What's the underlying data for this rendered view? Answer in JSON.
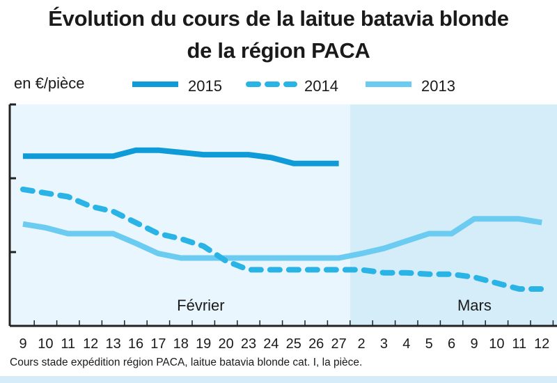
{
  "header": {
    "title_line1": "Évolution du cours de la laitue batavia blonde",
    "title_line2": "de la région PACA",
    "unit": "en €/pièce"
  },
  "footnote": "Cours stade expédition région PACA, laitue batavia blonde cat. I, la pièce.",
  "colors": {
    "series_2015": "#0f9bd7",
    "series_2014": "#2ab4e6",
    "series_2013": "#6ccbf0",
    "band_fevrier": "#eaf6fd",
    "band_mars": "#d4edf9",
    "axis": "#222222"
  },
  "chart_data": {
    "type": "line",
    "title": "Évolution du cours de la laitue batavia blonde de la région PACA",
    "ylabel": "en €/pièce",
    "xlabel": "",
    "categories": [
      "9",
      "10",
      "11",
      "12",
      "13",
      "16",
      "17",
      "18",
      "19",
      "20",
      "23",
      "24",
      "25",
      "26",
      "27",
      "2",
      "3",
      "4",
      "5",
      "6",
      "9",
      "10",
      "11",
      "12"
    ],
    "months": [
      {
        "label": "Février",
        "start": "9",
        "end": "27"
      },
      {
        "label": "Mars",
        "start": "2",
        "end": "12"
      }
    ],
    "ylim": [
      0,
      3
    ],
    "yticks": [
      0,
      1,
      2,
      3
    ],
    "series": [
      {
        "name": "2015",
        "style": "solid",
        "values": [
          2.3,
          2.3,
          2.3,
          2.3,
          2.3,
          2.38,
          2.38,
          2.35,
          2.32,
          2.32,
          2.32,
          2.28,
          2.2,
          2.2,
          2.2,
          null,
          null,
          null,
          null,
          null,
          null,
          null,
          null,
          null
        ]
      },
      {
        "name": "2014",
        "style": "dashed",
        "values": [
          1.85,
          1.8,
          1.75,
          1.62,
          1.55,
          1.4,
          1.25,
          1.18,
          1.08,
          0.88,
          0.76,
          0.76,
          0.76,
          0.76,
          0.76,
          0.76,
          0.72,
          0.72,
          0.7,
          0.7,
          0.66,
          0.58,
          0.5,
          0.5
        ]
      },
      {
        "name": "2013",
        "style": "solid",
        "values": [
          1.38,
          1.33,
          1.25,
          1.25,
          1.25,
          1.12,
          0.98,
          0.92,
          0.92,
          0.92,
          0.92,
          0.92,
          0.92,
          0.92,
          0.92,
          0.98,
          1.05,
          1.15,
          1.25,
          1.25,
          1.45,
          1.45,
          1.45,
          1.4
        ]
      }
    ]
  }
}
